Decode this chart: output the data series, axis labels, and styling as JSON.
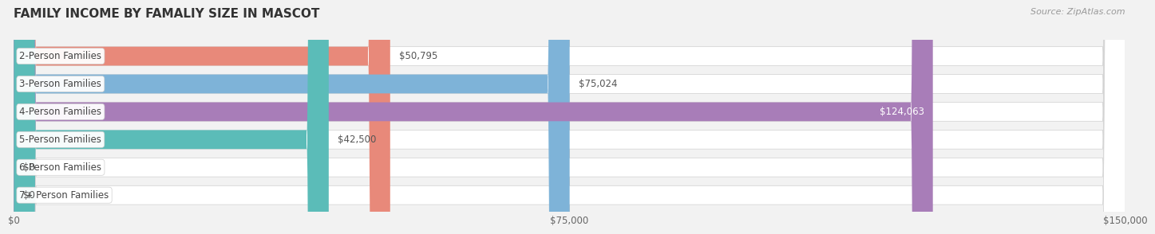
{
  "title": "FAMILY INCOME BY FAMALIY SIZE IN MASCOT",
  "source": "Source: ZipAtlas.com",
  "categories": [
    "2-Person Families",
    "3-Person Families",
    "4-Person Families",
    "5-Person Families",
    "6-Person Families",
    "7+ Person Families"
  ],
  "values": [
    50795,
    75024,
    124063,
    42500,
    0,
    0
  ],
  "bar_colors": [
    "#E8897A",
    "#7EB3D8",
    "#A87DB8",
    "#5BBCB8",
    "#A8A8D8",
    "#F4A8C0"
  ],
  "label_color_inside": [
    "#555555",
    "#555555",
    "#ffffff",
    "#555555",
    "#555555",
    "#555555"
  ],
  "max_value": 150000,
  "x_ticks": [
    0,
    75000,
    150000
  ],
  "x_tick_labels": [
    "$0",
    "$75,000",
    "$150,000"
  ],
  "value_labels": [
    "$50,795",
    "$75,024",
    "$124,063",
    "$42,500",
    "$0",
    "$0"
  ],
  "background_color": "#f2f2f2",
  "bar_bg_color": "#ffffff",
  "title_color": "#333333",
  "title_fontsize": 11,
  "source_fontsize": 8,
  "label_fontsize": 8.5,
  "value_fontsize": 8.5
}
